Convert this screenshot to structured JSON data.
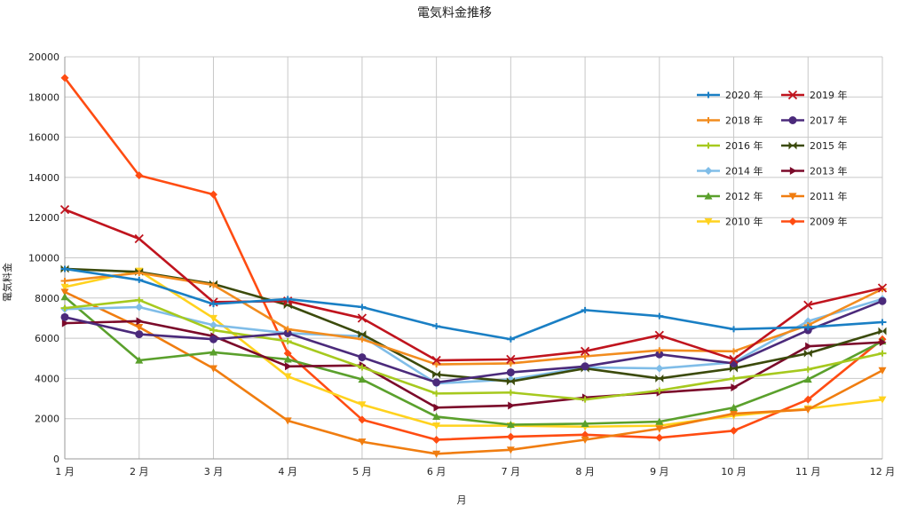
{
  "chart_data": {
    "type": "line",
    "title": "電気料金推移",
    "xlabel": "月",
    "ylabel": "電気料金",
    "categories": [
      "1 月",
      "2 月",
      "3 月",
      "4 月",
      "5 月",
      "6 月",
      "7 月",
      "8 月",
      "9 月",
      "10 月",
      "11 月",
      "12 月"
    ],
    "ylim": [
      0,
      20000
    ],
    "yticks": [
      0,
      2000,
      4000,
      6000,
      8000,
      10000,
      12000,
      14000,
      16000,
      18000,
      20000
    ],
    "grid": true,
    "legend_position": "top-right",
    "series": [
      {
        "name": "2020 年",
        "color": "#1a7fc4",
        "marker": "dash",
        "values": [
          9450,
          8900,
          7700,
          7950,
          7550,
          6600,
          5950,
          7400,
          7100,
          6450,
          6550,
          6800
        ]
      },
      {
        "name": "2019 年",
        "color": "#c0141e",
        "marker": "x",
        "values": [
          12400,
          10950,
          7800,
          7850,
          7000,
          4900,
          4950,
          5350,
          6150,
          4950,
          7650,
          8500
        ]
      },
      {
        "name": "2018 年",
        "color": "#f28c1e",
        "marker": "dash",
        "values": [
          8850,
          9250,
          8650,
          6450,
          5950,
          4700,
          4750,
          5100,
          5400,
          5350,
          6650,
          8450
        ]
      },
      {
        "name": "2017 年",
        "color": "#4b2a7b",
        "marker": "circle",
        "values": [
          7050,
          6200,
          5950,
          6250,
          5050,
          3800,
          4300,
          4600,
          5200,
          4750,
          6400,
          7850
        ]
      },
      {
        "name": "2016 年",
        "color": "#a6c91e",
        "marker": "dash",
        "values": [
          7500,
          7900,
          6400,
          5850,
          4550,
          3250,
          3300,
          2950,
          3400,
          4000,
          4450,
          5250
        ]
      },
      {
        "name": "2015 年",
        "color": "#3b4a0b",
        "marker": "bowtie",
        "values": [
          9450,
          9300,
          8700,
          7650,
          6200,
          4200,
          3850,
          4500,
          4000,
          4500,
          5250,
          6350
        ]
      },
      {
        "name": "2014 年",
        "color": "#80bde8",
        "marker": "diamond",
        "values": [
          7450,
          7550,
          6650,
          6250,
          6100,
          3750,
          3950,
          4550,
          4500,
          4800,
          6850,
          7950
        ]
      },
      {
        "name": "2013 年",
        "color": "#7b0a2a",
        "marker": "arrow",
        "values": [
          6750,
          6850,
          6100,
          4600,
          4650,
          2550,
          2650,
          3050,
          3300,
          3550,
          5600,
          5800
        ]
      },
      {
        "name": "2012 年",
        "color": "#5aa02c",
        "marker": "triangle",
        "values": [
          8050,
          4900,
          5300,
          4950,
          3950,
          2100,
          1700,
          1750,
          1850,
          2550,
          3950,
          5850
        ]
      },
      {
        "name": "2011 年",
        "color": "#f07d10",
        "marker": "triangle-down",
        "values": [
          8300,
          6550,
          4500,
          1900,
          850,
          250,
          450,
          950,
          1500,
          2250,
          2450,
          4400
        ]
      },
      {
        "name": "2010 年",
        "color": "#ffd21e",
        "marker": "triangle-down",
        "values": [
          8550,
          9350,
          7000,
          4100,
          2700,
          1650,
          1650,
          1600,
          1650,
          2150,
          2500,
          2950
        ]
      },
      {
        "name": "2009 年",
        "color": "#ff4c12",
        "marker": "diamond",
        "values": [
          18950,
          14100,
          13150,
          5250,
          1950,
          950,
          1100,
          1200,
          1050,
          1400,
          2950,
          5950
        ]
      }
    ]
  }
}
